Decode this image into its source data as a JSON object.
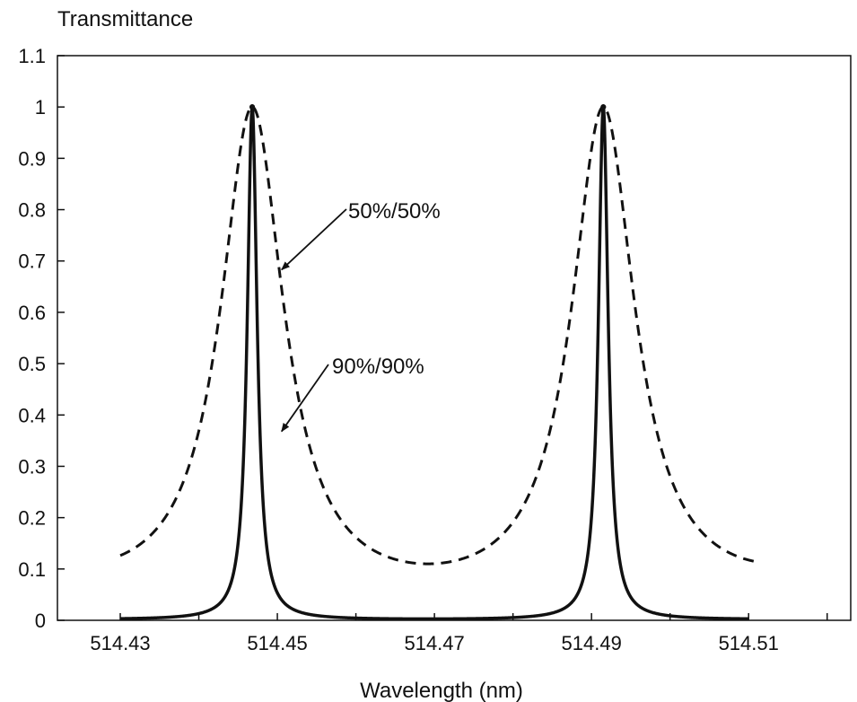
{
  "chart_data": {
    "type": "line",
    "ylabel": "Transmittance",
    "xlabel": "Wavelength (nm)",
    "xlim": [
      514.422,
      514.523
    ],
    "ylim": [
      0,
      1.1
    ],
    "grid": false,
    "x_ticks": [
      514.43,
      514.44,
      514.45,
      514.46,
      514.47,
      514.48,
      514.49,
      514.5,
      514.51,
      514.52
    ],
    "x_tick_labels": [
      {
        "value": 514.43,
        "label": "514.43"
      },
      {
        "value": 514.45,
        "label": "514.45"
      },
      {
        "value": 514.47,
        "label": "514.47"
      },
      {
        "value": 514.49,
        "label": "514.49"
      },
      {
        "value": 514.51,
        "label": "514.51"
      }
    ],
    "y_tick_labels": [
      {
        "value": 0,
        "label": "0"
      },
      {
        "value": 0.1,
        "label": "0.1"
      },
      {
        "value": 0.2,
        "label": "0.2"
      },
      {
        "value": 0.3,
        "label": "0.3"
      },
      {
        "value": 0.4,
        "label": "0.4"
      },
      {
        "value": 0.5,
        "label": "0.5"
      },
      {
        "value": 0.6,
        "label": "0.6"
      },
      {
        "value": 0.7,
        "label": "0.7"
      },
      {
        "value": 0.8,
        "label": "0.8"
      },
      {
        "value": 0.9,
        "label": "0.9"
      },
      {
        "value": 1,
        "label": "1"
      },
      {
        "value": 1.1,
        "label": "1.1"
      }
    ],
    "series": [
      {
        "name": "50%/50%",
        "style": "dashed",
        "color": "#111111",
        "x_range": [
          514.43,
          514.511
        ],
        "peaks": [
          514.4468,
          514.4915
        ],
        "peak_value": 1.0,
        "min_value": 0.11,
        "free_spectral_range": 0.0447
      },
      {
        "name": "90%/90%",
        "style": "solid",
        "color": "#111111",
        "x_range": [
          514.43,
          514.51
        ],
        "peaks": [
          514.4468,
          514.4915
        ],
        "peak_value": 1.0,
        "min_value": 0.0028,
        "free_spectral_range": 0.0447
      }
    ],
    "annotations": [
      {
        "text": "50%/50%",
        "target_series": "50%/50%",
        "target": [
          514.4478,
          0.69
        ]
      },
      {
        "text": "90%/90%",
        "target_series": "90%/90%",
        "target": [
          514.4478,
          0.375
        ]
      }
    ]
  }
}
